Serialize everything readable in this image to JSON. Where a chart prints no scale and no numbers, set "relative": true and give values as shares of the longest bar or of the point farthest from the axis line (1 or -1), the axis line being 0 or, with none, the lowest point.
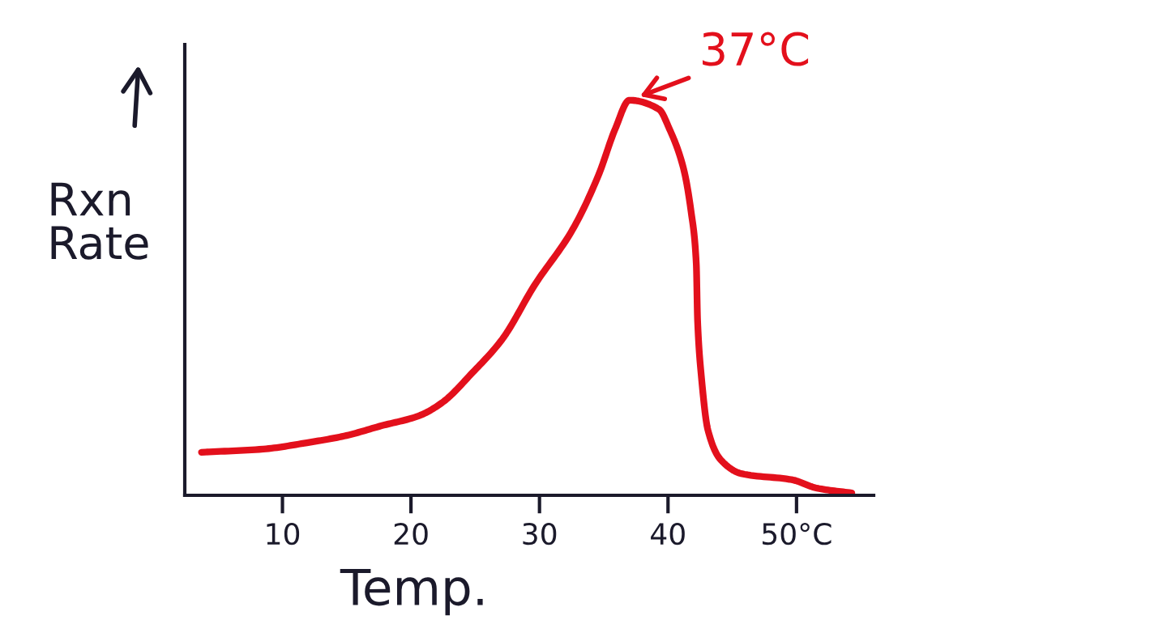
{
  "chart_data": {
    "type": "line",
    "xlabel": "Temp.",
    "ylabel": "Rxn Rate",
    "relative": true,
    "tick_labels": "x",
    "line_style": "solid",
    "xlim": [
      2.4,
      56.0
    ],
    "xticks": [
      10,
      20,
      30,
      40,
      {
        "value": 50,
        "label": "50°C"
      }
    ],
    "series": [
      {
        "color": "#e3101c",
        "x": [
          3.7,
          8.5,
          11.9,
          14.8,
          17.7,
          20.6,
          22.4,
          24.8,
          27.1,
          29.6,
          32.6,
          34.6,
          35.9,
          37.0,
          39.3,
          40.1,
          41.2,
          41.8,
          42.2,
          42.3,
          42.6,
          43.1,
          44.1,
          45.7,
          49.7,
          51.6,
          54.3
        ],
        "values": [
          0.109,
          0.117,
          0.133,
          0.15,
          0.176,
          0.201,
          0.234,
          0.311,
          0.395,
          0.531,
          0.674,
          0.811,
          0.928,
          1.0,
          0.977,
          0.928,
          0.828,
          0.717,
          0.586,
          0.443,
          0.299,
          0.166,
          0.09,
          0.055,
          0.039,
          0.018,
          0.006
        ]
      }
    ],
    "annotations": [
      {
        "text": "37°C",
        "x": 37.0,
        "y": 1.0
      }
    ]
  }
}
